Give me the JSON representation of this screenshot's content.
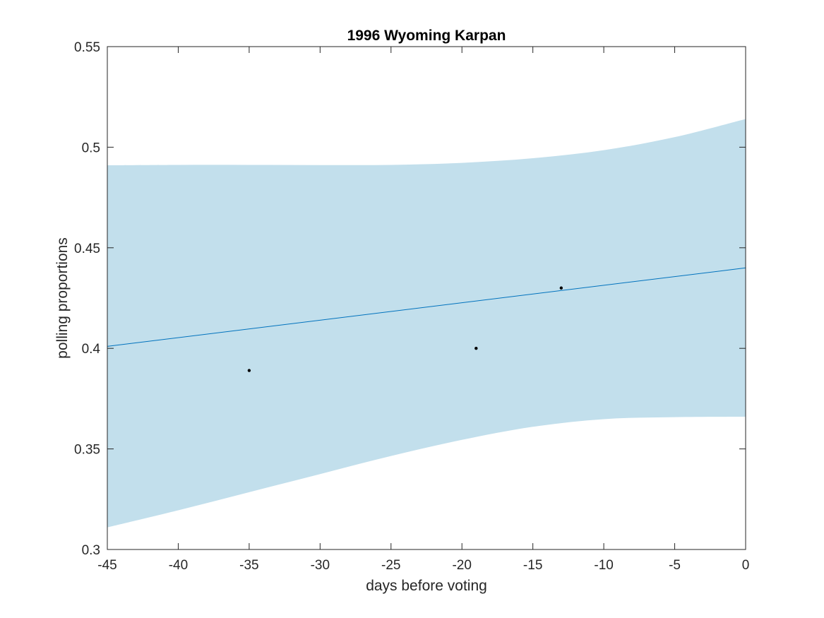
{
  "chart_data": {
    "type": "line",
    "title": "1996 Wyoming Karpan",
    "xlabel": "days before voting",
    "ylabel": "polling proportions",
    "xlim": [
      -45,
      0
    ],
    "ylim": [
      0.3,
      0.55
    ],
    "xticks": [
      -45,
      -40,
      -35,
      -30,
      -25,
      -20,
      -15,
      -10,
      -5,
      0
    ],
    "xtick_labels": [
      "-45",
      "-40",
      "-35",
      "-30",
      "-25",
      "-20",
      "-15",
      "-10",
      "-5",
      "0"
    ],
    "yticks": [
      0.3,
      0.35,
      0.4,
      0.45,
      0.5,
      0.55
    ],
    "ytick_labels": [
      "0.3",
      "0.35",
      "0.4",
      "0.45",
      "0.5",
      "0.55"
    ],
    "grid": false,
    "colors": {
      "band": "#c2dfec",
      "line": "#0072bd",
      "points": "#000000",
      "axes": "#262626"
    },
    "band": {
      "x": [
        -45,
        -40,
        -35,
        -30,
        -25,
        -20,
        -15,
        -10,
        -5,
        0
      ],
      "upper": [
        0.491,
        0.4912,
        0.4912,
        0.4911,
        0.4912,
        0.4922,
        0.4945,
        0.4985,
        0.505,
        0.514
      ],
      "lower": [
        0.311,
        0.3195,
        0.3285,
        0.3375,
        0.3465,
        0.3545,
        0.361,
        0.3648,
        0.3658,
        0.366
      ]
    },
    "line": {
      "x": [
        -45,
        0
      ],
      "y": [
        0.401,
        0.44
      ]
    },
    "points": {
      "x": [
        -35,
        -19,
        -13
      ],
      "y": [
        0.389,
        0.4,
        0.43
      ]
    }
  }
}
